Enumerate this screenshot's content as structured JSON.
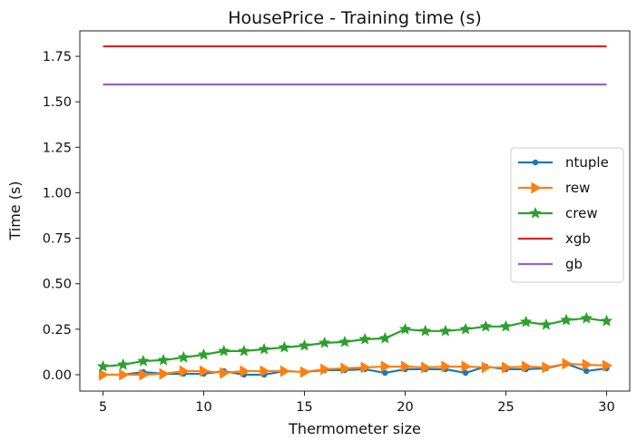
{
  "chart_data": {
    "type": "line",
    "title": "HousePrice - Training time (s)",
    "xlabel": "Thermometer size",
    "ylabel": "Time (s)",
    "xlim": [
      3.85,
      31.15
    ],
    "ylim": [
      -0.09,
      1.89
    ],
    "xticks": [
      5,
      10,
      15,
      20,
      25,
      30
    ],
    "yticks": [
      0.0,
      0.25,
      0.5,
      0.75,
      1.0,
      1.25,
      1.5,
      1.75
    ],
    "xtick_labels": [
      "5",
      "10",
      "15",
      "20",
      "25",
      "30"
    ],
    "ytick_labels": [
      "0.00",
      "0.25",
      "0.50",
      "0.75",
      "1.00",
      "1.25",
      "1.50",
      "1.75"
    ],
    "grid": false,
    "legend_position": "center-right",
    "x": [
      5,
      6,
      7,
      8,
      9,
      10,
      11,
      12,
      13,
      14,
      15,
      16,
      17,
      18,
      19,
      20,
      21,
      22,
      23,
      24,
      25,
      26,
      27,
      28,
      29,
      30
    ],
    "series": [
      {
        "name": "ntuple",
        "color": "#1f77b4",
        "marker": "dot",
        "values": [
          0.0,
          0.0,
          0.015,
          0.005,
          0.005,
          0.005,
          0.02,
          0.0,
          0.0,
          0.02,
          0.015,
          0.025,
          0.025,
          0.03,
          0.01,
          0.03,
          0.03,
          0.03,
          0.01,
          0.045,
          0.03,
          0.03,
          0.035,
          0.06,
          0.02,
          0.035
        ]
      },
      {
        "name": "rew",
        "color": "#ff7f0e",
        "marker": "triangle-right",
        "values": [
          0.0,
          0.0,
          0.0,
          0.005,
          0.02,
          0.02,
          0.01,
          0.02,
          0.02,
          0.02,
          0.015,
          0.03,
          0.035,
          0.04,
          0.045,
          0.045,
          0.04,
          0.045,
          0.045,
          0.04,
          0.04,
          0.045,
          0.04,
          0.06,
          0.055,
          0.05
        ]
      },
      {
        "name": "crew",
        "color": "#2ca02c",
        "marker": "star",
        "values": [
          0.045,
          0.055,
          0.075,
          0.08,
          0.095,
          0.11,
          0.13,
          0.13,
          0.14,
          0.15,
          0.16,
          0.175,
          0.18,
          0.195,
          0.2,
          0.25,
          0.24,
          0.24,
          0.25,
          0.265,
          0.265,
          0.29,
          0.275,
          0.3,
          0.31,
          0.295
        ]
      },
      {
        "name": "xgb",
        "color": "#d62728",
        "marker": "none",
        "values": [
          1.805,
          1.805,
          1.805,
          1.805,
          1.805,
          1.805,
          1.805,
          1.805,
          1.805,
          1.805,
          1.805,
          1.805,
          1.805,
          1.805,
          1.805,
          1.805,
          1.805,
          1.805,
          1.805,
          1.805,
          1.805,
          1.805,
          1.805,
          1.805,
          1.805,
          1.805
        ]
      },
      {
        "name": "gb",
        "color": "#9467bd",
        "marker": "none",
        "values": [
          1.595,
          1.595,
          1.595,
          1.595,
          1.595,
          1.595,
          1.595,
          1.595,
          1.595,
          1.595,
          1.595,
          1.595,
          1.595,
          1.595,
          1.595,
          1.595,
          1.595,
          1.595,
          1.595,
          1.595,
          1.595,
          1.595,
          1.595,
          1.595,
          1.595,
          1.595
        ]
      }
    ]
  }
}
